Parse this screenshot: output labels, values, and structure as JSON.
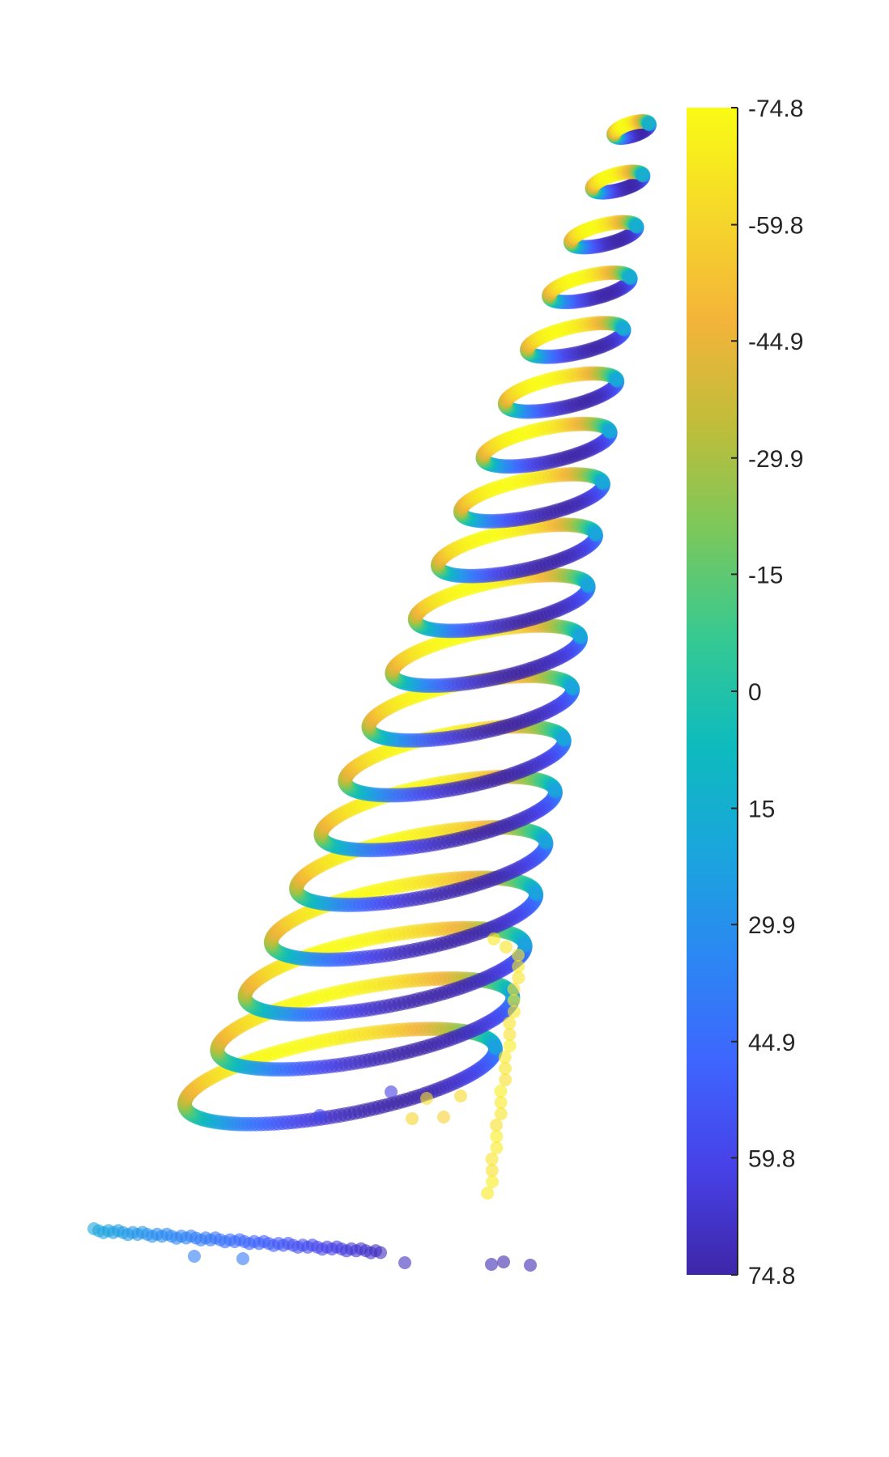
{
  "chart_data": {
    "type": "scatter",
    "title": "",
    "xlabel": "",
    "ylabel": "",
    "axes_visible": false,
    "grid": false,
    "marker": "filled-circle",
    "marker_alpha": 0.6,
    "colormap": "parula",
    "colormap_stops": [
      "#3e26a8",
      "#4741e7",
      "#3e65fe",
      "#2c87f3",
      "#1aa6dc",
      "#0ebbbd",
      "#36c992",
      "#7ac85c",
      "#bfbd3a",
      "#f4b43a",
      "#f5d82a",
      "#f9fb15"
    ],
    "colorbar": {
      "location": "right",
      "direction": "reversed",
      "limits": [
        -74.8,
        74.8
      ],
      "ticks": [
        -74.8,
        -59.8,
        -44.9,
        -29.9,
        -15,
        0,
        15,
        29.9,
        44.9,
        59.8,
        74.8
      ],
      "tick_labels": [
        "-74.8",
        "-59.8",
        "-44.9",
        "-29.9",
        "-15",
        "0",
        "15",
        "29.9",
        "44.9",
        "59.8",
        "74.8"
      ]
    },
    "description_of_shape": "helical spiral of points rising diagonally from lower left to upper right, colored by value; a trailing column of yellow points and a horizontal blue-purple row at the bottom",
    "helix": {
      "turns": 19,
      "color_value_range": [
        -74.8,
        74.8
      ]
    }
  }
}
